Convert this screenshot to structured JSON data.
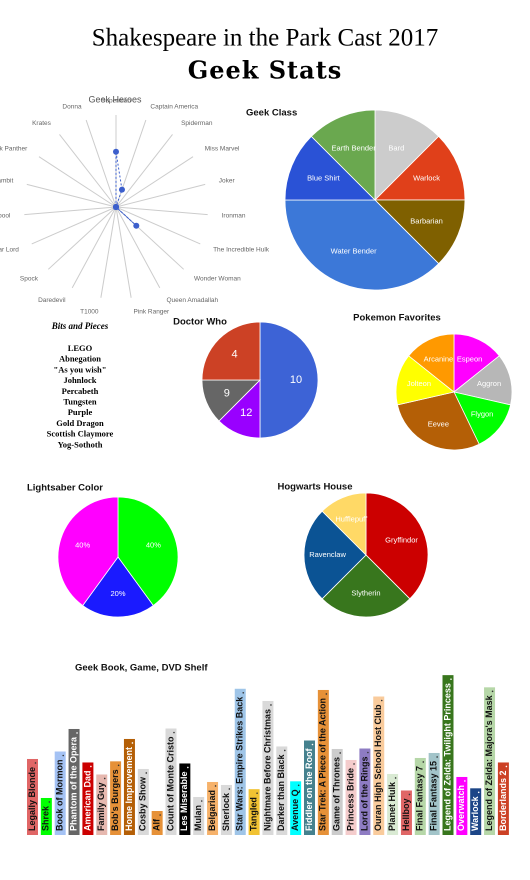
{
  "header": {
    "title": "Shakespeare in the Park Cast 2017",
    "subtitle": "Geek Stats"
  },
  "chart_data": [
    {
      "type": "radar",
      "title": "Geek Heroes",
      "categories": [
        "Superman",
        "Captain America",
        "Spiderman",
        "Miss Marvel",
        "Joker",
        "Ironman",
        "The Incredible Hulk",
        "Wonder Woman",
        "Queen Amadallah",
        "Pink Ranger",
        "T1000",
        "Daredevil",
        "Spock",
        "Star Lord",
        "Deadpool",
        "Gambit",
        "Black Panther",
        "Krates",
        "Donna"
      ],
      "values": [
        3,
        1,
        0,
        0,
        0,
        0,
        0,
        1.5,
        0,
        0,
        0,
        0,
        0,
        0,
        0,
        0,
        0,
        0,
        0
      ],
      "rlim": [
        0,
        5
      ],
      "color": "#3c5fcc"
    },
    {
      "type": "pie",
      "title": "Geek Class",
      "categories": [
        "Bard",
        "Warlock",
        "Barbarian",
        "Water Bender",
        "Blue Shirt",
        "Earth Bender"
      ],
      "values": [
        1,
        1,
        1,
        3,
        1,
        1
      ],
      "colors": [
        "#cccccc",
        "#e0401a",
        "#7f6000",
        "#3c78d8",
        "#2a52d6",
        "#6aa84f"
      ]
    },
    {
      "type": "pie",
      "title": "Doctor Who",
      "categories": [
        "10",
        "12",
        "9",
        "4"
      ],
      "values": [
        4,
        1,
        1,
        2
      ],
      "colors": [
        "#3d63d6",
        "#9900ff",
        "#666666",
        "#cc4125"
      ]
    },
    {
      "type": "pie",
      "title": "Pokemon Favorites",
      "categories": [
        "Espeon",
        "Aggron",
        "Flygon",
        "Eevee",
        "Jolteon",
        "Arcanine"
      ],
      "values": [
        1,
        1,
        1,
        2,
        1,
        1
      ],
      "colors": [
        "#ff00ff",
        "#b7b7b7",
        "#00ff00",
        "#b45f06",
        "#ffff00",
        "#ff9900"
      ]
    },
    {
      "type": "pie",
      "title": "Lightsaber Color",
      "values": [
        40,
        20,
        40
      ],
      "value_labels": [
        "40%",
        "20%",
        "40%"
      ],
      "colors": [
        "#00ff00",
        "#1a1aff",
        "#ff00ff"
      ]
    },
    {
      "type": "pie",
      "title": "Hogwarts House",
      "categories": [
        "Gryffindor",
        "Slytherin",
        "Ravenclaw",
        "Hufflepuff"
      ],
      "values": [
        3,
        2,
        2,
        1
      ],
      "colors": [
        "#cc0000",
        "#38761d",
        "#0b5394",
        "#ffd966"
      ]
    }
  ],
  "bits_and_pieces": {
    "title": "Bits and Pieces",
    "items": [
      "LEGO",
      "Abnegation",
      "\"As you wish\"",
      "Johnlock",
      "Percabeth",
      "Tungsten",
      "Purple",
      "Gold Dragon",
      "Scottish Claymore",
      "Yog-Sothoth"
    ]
  },
  "shelf": {
    "title": "Geek Book, Game, DVD Shelf",
    "books": [
      {
        "label": "Legally Blonde",
        "color": "#e06666"
      },
      {
        "label": "Shrek",
        "color": "#00ff00"
      },
      {
        "label": "Book of Mormon",
        "color": "#a4c2f4"
      },
      {
        "label": "Phantom of the Opera",
        "color": "#666666"
      },
      {
        "label": "American Dad",
        "color": "#cc0000"
      },
      {
        "label": "Family Guy",
        "color": "#e6b8af"
      },
      {
        "label": "Bob's Burgers",
        "color": "#e69138"
      },
      {
        "label": "Home Improvement",
        "color": "#b45f06"
      },
      {
        "label": "Cosby Show",
        "color": "#d9d9d9"
      },
      {
        "label": "Alf",
        "color": "#e69138"
      },
      {
        "label": "Count of Monte Cristo",
        "color": "#d9d9d9"
      },
      {
        "label": "Les Miserable",
        "color": "#000000"
      },
      {
        "label": "Mulan",
        "color": "#d9d9d9"
      },
      {
        "label": "Belgariad",
        "color": "#f6b26b"
      },
      {
        "label": "Sherlock",
        "color": "#d9d9d9"
      },
      {
        "label": "Star Wars: Empire Strikes Back",
        "color": "#9fc5e8"
      },
      {
        "label": "Tangled",
        "color": "#f1c232"
      },
      {
        "label": "Nightmare Before Christmas",
        "color": "#d9d9d9"
      },
      {
        "label": "Darker than Black",
        "color": "#d9d9d9"
      },
      {
        "label": "Avenue Q",
        "color": "#00ffff"
      },
      {
        "label": "Fiddler on the Roof",
        "color": "#45818e"
      },
      {
        "label": "Star Trek: A Piece of the Action",
        "color": "#e69138"
      },
      {
        "label": "Game of Thrones",
        "color": "#cccccc"
      },
      {
        "label": "Princess Bride",
        "color": "#f4cccc"
      },
      {
        "label": "Lord of the Rings",
        "color": "#8e7cc3"
      },
      {
        "label": "Ouran High School Host Club",
        "color": "#f9cb9c"
      },
      {
        "label": "Planet Hulk",
        "color": "#d9ead3"
      },
      {
        "label": "Hellboy",
        "color": "#e06666"
      },
      {
        "label": "Final Fantasy 7",
        "color": "#b6d7a8"
      },
      {
        "label": "Final Fantasy 15",
        "color": "#a2c4c9"
      },
      {
        "label": "Legend of Zelda: Twilight  Princess",
        "color": "#38761d"
      },
      {
        "label": "Overwatch",
        "color": "#ff00ff"
      },
      {
        "label": "Warlock",
        "color": "#1c4587"
      },
      {
        "label": "Legend of Zelda: Majora's Mask",
        "color": "#b6d7a8"
      },
      {
        "label": "Borderlands 2",
        "color": "#cc4125"
      }
    ]
  }
}
